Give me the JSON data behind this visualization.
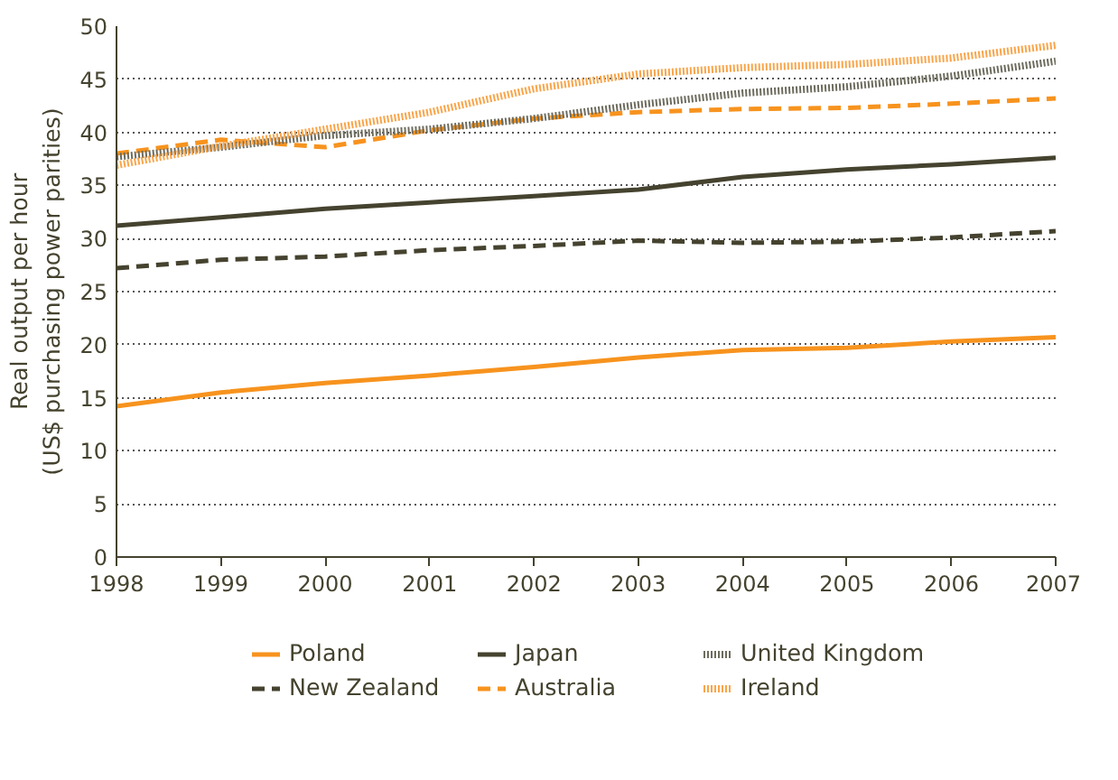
{
  "chart_data": {
    "type": "line",
    "ylabel": "Real output per hour\n(US$ purchasing power parities)",
    "x": [
      1998,
      1999,
      2000,
      2001,
      2002,
      2003,
      2004,
      2005,
      2006,
      2007
    ],
    "xlim": [
      1998,
      2007
    ],
    "xticks": [
      1998,
      1999,
      2000,
      2001,
      2002,
      2003,
      2004,
      2005,
      2006,
      2007
    ],
    "ylim": [
      0,
      50
    ],
    "yticks": [
      0,
      5,
      10,
      15,
      20,
      25,
      30,
      35,
      40,
      45,
      50
    ],
    "grid": "y",
    "legend": "bottom",
    "series": [
      {
        "name": "Poland",
        "color": "#f7931e",
        "line_style": "solid",
        "values": [
          14.2,
          15.5,
          16.4,
          17.1,
          17.9,
          18.8,
          19.5,
          19.7,
          20.3,
          20.7
        ]
      },
      {
        "name": "New Zealand",
        "color": "#45432f",
        "line_style": "dashed",
        "values": [
          27.2,
          28.0,
          28.3,
          28.9,
          29.3,
          29.8,
          29.6,
          29.7,
          30.1,
          30.7
        ]
      },
      {
        "name": "Japan",
        "color": "#45432f",
        "line_style": "solid",
        "values": [
          31.2,
          32.0,
          32.8,
          33.4,
          34.0,
          34.6,
          35.8,
          36.5,
          37.0,
          37.6
        ]
      },
      {
        "name": "Australia",
        "color": "#f7931e",
        "line_style": "dashed",
        "values": [
          38.0,
          39.3,
          38.6,
          40.2,
          41.3,
          41.9,
          42.2,
          42.3,
          42.7,
          43.2
        ]
      },
      {
        "name": "United Kingdom",
        "color": "#6e6c5e",
        "line_style": "dotted",
        "values": [
          37.7,
          38.6,
          39.7,
          40.3,
          41.3,
          42.6,
          43.7,
          44.3,
          45.3,
          46.7
        ]
      },
      {
        "name": "Ireland",
        "color": "#f9a54a",
        "line_style": "dotted",
        "values": [
          36.9,
          38.7,
          40.3,
          41.9,
          44.1,
          45.5,
          46.1,
          46.4,
          47.0,
          48.2
        ]
      }
    ]
  }
}
